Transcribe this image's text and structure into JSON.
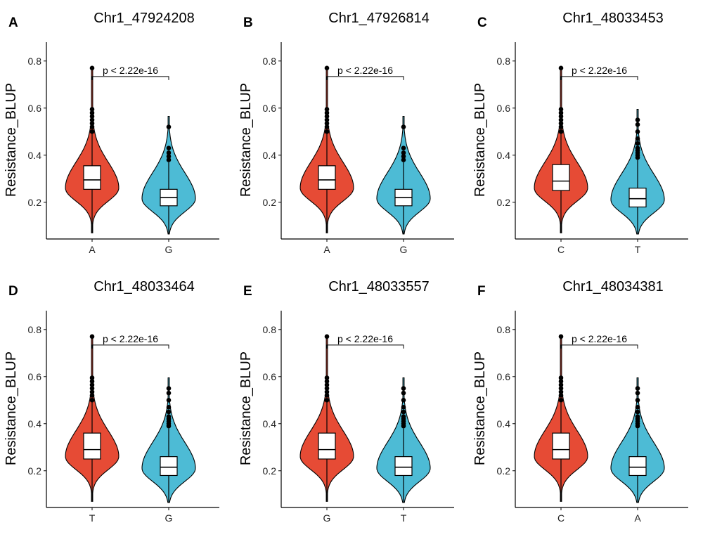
{
  "figure": {
    "colors": {
      "allele_left": "#e64b35",
      "allele_right": "#4dbbd5",
      "box_fill": "#ffffff",
      "axis": "#000000"
    }
  },
  "chart_data": [
    {
      "type": "violin",
      "panel_label": "A",
      "title": "Chr1_47924208",
      "ylabel": "Resistance_BLUP",
      "xlabel": "",
      "ylim": [
        0.05,
        0.88
      ],
      "yticks": [
        0.2,
        0.4,
        0.6,
        0.8
      ],
      "ytick_labels": [
        "0.2",
        "0.4",
        "0.6",
        "0.8"
      ],
      "categories": [
        "A",
        "G"
      ],
      "pvalue_label": "p < 2.22e-16",
      "groups": [
        {
          "name": "A",
          "color": "#e64b35",
          "min": 0.07,
          "max": 0.77,
          "q1": 0.255,
          "median": 0.295,
          "q3": 0.355,
          "whisker_low": 0.07,
          "whisker_high": 0.49,
          "outliers": [
            0.5,
            0.52,
            0.535,
            0.55,
            0.565,
            0.58,
            0.595,
            0.77
          ],
          "density_peak": 0.26
        },
        {
          "name": "G",
          "color": "#4dbbd5",
          "min": 0.065,
          "max": 0.565,
          "q1": 0.185,
          "median": 0.22,
          "q3": 0.255,
          "whisker_low": 0.065,
          "whisker_high": 0.37,
          "outliers": [
            0.38,
            0.395,
            0.41,
            0.43,
            0.52
          ],
          "density_peak": 0.215
        }
      ]
    },
    {
      "type": "violin",
      "panel_label": "B",
      "title": "Chr1_47926814",
      "ylabel": "Resistance_BLUP",
      "xlabel": "",
      "ylim": [
        0.05,
        0.88
      ],
      "yticks": [
        0.2,
        0.4,
        0.6,
        0.8
      ],
      "ytick_labels": [
        "0.2",
        "0.4",
        "0.6",
        "0.8"
      ],
      "categories": [
        "A",
        "G"
      ],
      "pvalue_label": "p < 2.22e-16",
      "groups": [
        {
          "name": "A",
          "color": "#e64b35",
          "min": 0.07,
          "max": 0.77,
          "q1": 0.255,
          "median": 0.295,
          "q3": 0.355,
          "whisker_low": 0.07,
          "whisker_high": 0.49,
          "outliers": [
            0.5,
            0.52,
            0.535,
            0.55,
            0.565,
            0.58,
            0.595,
            0.77
          ],
          "density_peak": 0.26
        },
        {
          "name": "G",
          "color": "#4dbbd5",
          "min": 0.065,
          "max": 0.565,
          "q1": 0.185,
          "median": 0.22,
          "q3": 0.255,
          "whisker_low": 0.065,
          "whisker_high": 0.37,
          "outliers": [
            0.38,
            0.395,
            0.41,
            0.43,
            0.52
          ],
          "density_peak": 0.215
        }
      ]
    },
    {
      "type": "violin",
      "panel_label": "C",
      "title": "Chr1_48033453",
      "ylabel": "Resistance_BLUP",
      "xlabel": "",
      "ylim": [
        0.05,
        0.88
      ],
      "yticks": [
        0.2,
        0.4,
        0.6,
        0.8
      ],
      "ytick_labels": [
        "0.2",
        "0.4",
        "0.6",
        "0.8"
      ],
      "categories": [
        "C",
        "T"
      ],
      "pvalue_label": "p < 2.22e-16",
      "groups": [
        {
          "name": "C",
          "color": "#e64b35",
          "min": 0.07,
          "max": 0.77,
          "q1": 0.25,
          "median": 0.29,
          "q3": 0.36,
          "whisker_low": 0.07,
          "whisker_high": 0.49,
          "outliers": [
            0.5,
            0.52,
            0.535,
            0.55,
            0.565,
            0.58,
            0.595,
            0.77
          ],
          "density_peak": 0.26
        },
        {
          "name": "T",
          "color": "#4dbbd5",
          "min": 0.065,
          "max": 0.595,
          "q1": 0.18,
          "median": 0.215,
          "q3": 0.26,
          "whisker_low": 0.065,
          "whisker_high": 0.38,
          "outliers": [
            0.39,
            0.4,
            0.41,
            0.42,
            0.43,
            0.45,
            0.47,
            0.5,
            0.53,
            0.55
          ],
          "density_peak": 0.21
        }
      ]
    },
    {
      "type": "violin",
      "panel_label": "D",
      "title": "Chr1_48033464",
      "ylabel": "Resistance_BLUP",
      "xlabel": "",
      "ylim": [
        0.05,
        0.88
      ],
      "yticks": [
        0.2,
        0.4,
        0.6,
        0.8
      ],
      "ytick_labels": [
        "0.2",
        "0.4",
        "0.6",
        "0.8"
      ],
      "categories": [
        "T",
        "G"
      ],
      "pvalue_label": "p < 2.22e-16",
      "groups": [
        {
          "name": "T",
          "color": "#e64b35",
          "min": 0.07,
          "max": 0.77,
          "q1": 0.25,
          "median": 0.29,
          "q3": 0.36,
          "whisker_low": 0.07,
          "whisker_high": 0.49,
          "outliers": [
            0.5,
            0.52,
            0.535,
            0.55,
            0.565,
            0.58,
            0.595,
            0.77
          ],
          "density_peak": 0.26
        },
        {
          "name": "G",
          "color": "#4dbbd5",
          "min": 0.065,
          "max": 0.595,
          "q1": 0.18,
          "median": 0.215,
          "q3": 0.26,
          "whisker_low": 0.065,
          "whisker_high": 0.38,
          "outliers": [
            0.39,
            0.4,
            0.41,
            0.42,
            0.43,
            0.45,
            0.47,
            0.5,
            0.53,
            0.55
          ],
          "density_peak": 0.21
        }
      ]
    },
    {
      "type": "violin",
      "panel_label": "E",
      "title": "Chr1_48033557",
      "ylabel": "Resistance_BLUP",
      "xlabel": "",
      "ylim": [
        0.05,
        0.88
      ],
      "yticks": [
        0.2,
        0.4,
        0.6,
        0.8
      ],
      "ytick_labels": [
        "0.2",
        "0.4",
        "0.6",
        "0.8"
      ],
      "categories": [
        "G",
        "T"
      ],
      "pvalue_label": "p < 2.22e-16",
      "groups": [
        {
          "name": "G",
          "color": "#e64b35",
          "min": 0.07,
          "max": 0.77,
          "q1": 0.25,
          "median": 0.29,
          "q3": 0.36,
          "whisker_low": 0.07,
          "whisker_high": 0.49,
          "outliers": [
            0.5,
            0.52,
            0.535,
            0.55,
            0.565,
            0.58,
            0.595,
            0.77
          ],
          "density_peak": 0.26
        },
        {
          "name": "T",
          "color": "#4dbbd5",
          "min": 0.065,
          "max": 0.595,
          "q1": 0.18,
          "median": 0.215,
          "q3": 0.26,
          "whisker_low": 0.065,
          "whisker_high": 0.38,
          "outliers": [
            0.39,
            0.4,
            0.41,
            0.42,
            0.43,
            0.45,
            0.47,
            0.5,
            0.53,
            0.55
          ],
          "density_peak": 0.21
        }
      ]
    },
    {
      "type": "violin",
      "panel_label": "F",
      "title": "Chr1_48034381",
      "ylabel": "Resistance_BLUP",
      "xlabel": "",
      "ylim": [
        0.05,
        0.88
      ],
      "yticks": [
        0.2,
        0.4,
        0.6,
        0.8
      ],
      "ytick_labels": [
        "0.2",
        "0.4",
        "0.6",
        "0.8"
      ],
      "categories": [
        "C",
        "A"
      ],
      "pvalue_label": "p < 2.22e-16",
      "groups": [
        {
          "name": "C",
          "color": "#e64b35",
          "min": 0.07,
          "max": 0.77,
          "q1": 0.25,
          "median": 0.29,
          "q3": 0.36,
          "whisker_low": 0.07,
          "whisker_high": 0.49,
          "outliers": [
            0.5,
            0.52,
            0.535,
            0.55,
            0.565,
            0.58,
            0.595,
            0.77
          ],
          "density_peak": 0.26
        },
        {
          "name": "A",
          "color": "#4dbbd5",
          "min": 0.065,
          "max": 0.595,
          "q1": 0.18,
          "median": 0.215,
          "q3": 0.26,
          "whisker_low": 0.065,
          "whisker_high": 0.38,
          "outliers": [
            0.39,
            0.4,
            0.41,
            0.42,
            0.43,
            0.45,
            0.47,
            0.5,
            0.53,
            0.55
          ],
          "density_peak": 0.21
        }
      ]
    }
  ]
}
